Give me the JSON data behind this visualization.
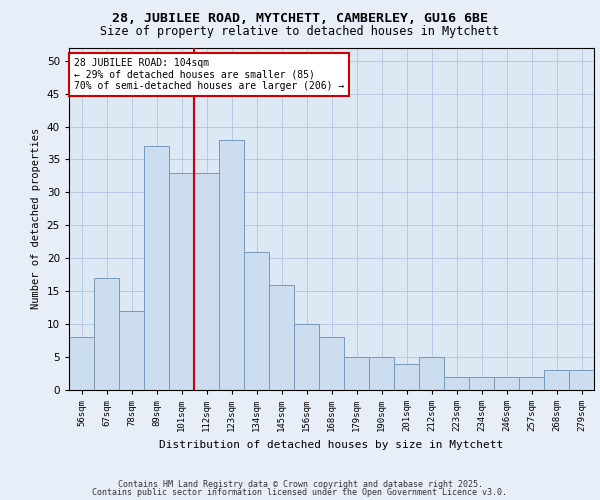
{
  "title1": "28, JUBILEE ROAD, MYTCHETT, CAMBERLEY, GU16 6BE",
  "title2": "Size of property relative to detached houses in Mytchett",
  "xlabel": "Distribution of detached houses by size in Mytchett",
  "ylabel": "Number of detached properties",
  "categories": [
    "56sqm",
    "67sqm",
    "78sqm",
    "89sqm",
    "101sqm",
    "112sqm",
    "123sqm",
    "134sqm",
    "145sqm",
    "156sqm",
    "168sqm",
    "179sqm",
    "190sqm",
    "201sqm",
    "212sqm",
    "223sqm",
    "234sqm",
    "246sqm",
    "257sqm",
    "268sqm",
    "279sqm"
  ],
  "values": [
    8,
    17,
    12,
    37,
    33,
    33,
    38,
    21,
    16,
    10,
    8,
    5,
    5,
    4,
    5,
    2,
    2,
    2,
    2,
    3,
    3
  ],
  "bar_color": "#ccddf0",
  "bar_edge_color": "#7799bb",
  "vline_x": 4.5,
  "vline_color": "#cc0000",
  "annotation_text": "28 JUBILEE ROAD: 104sqm\n← 29% of detached houses are smaller (85)\n70% of semi-detached houses are larger (206) →",
  "annotation_box_color": "#ffffff",
  "annotation_box_edge": "#cc0000",
  "ylim": [
    0,
    52
  ],
  "yticks": [
    0,
    5,
    10,
    15,
    20,
    25,
    30,
    35,
    40,
    45,
    50
  ],
  "background_color": "#dde8f5",
  "fig_background": "#e8eef8",
  "footer1": "Contains HM Land Registry data © Crown copyright and database right 2025.",
  "footer2": "Contains public sector information licensed under the Open Government Licence v3.0."
}
